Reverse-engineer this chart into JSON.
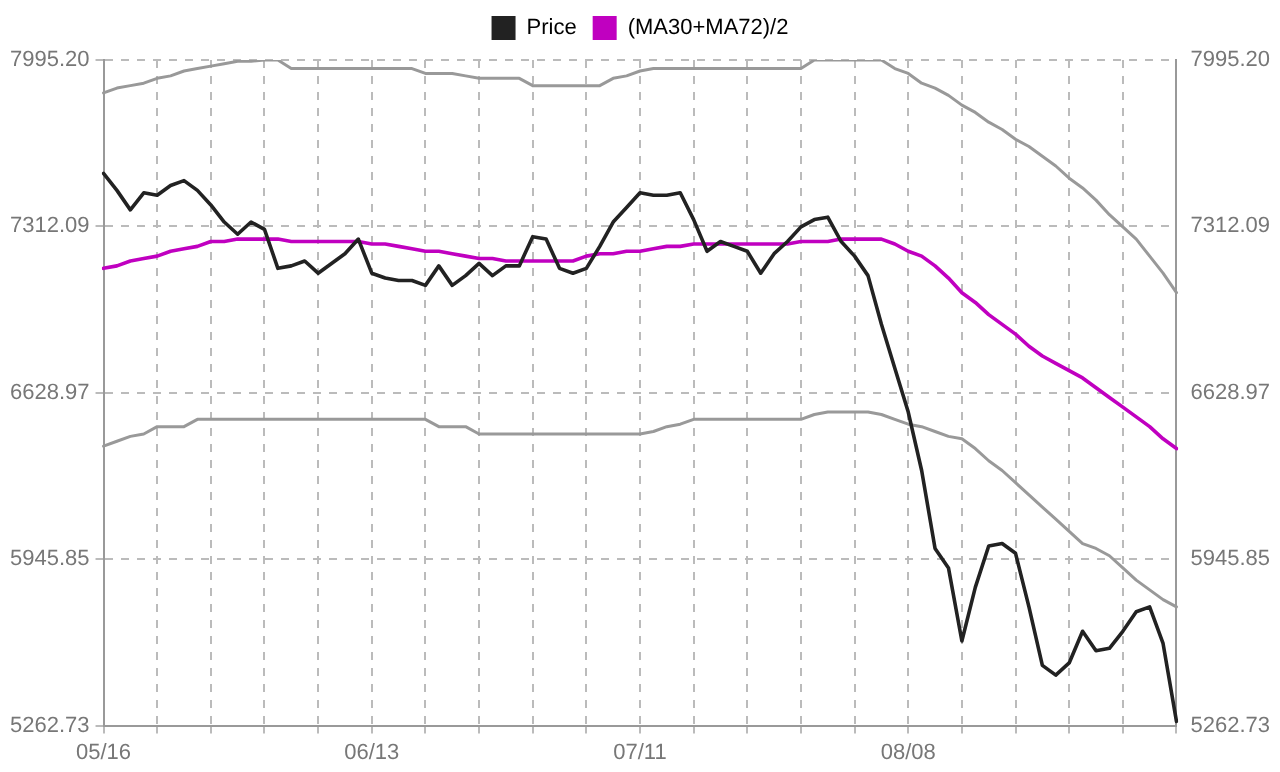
{
  "chart_data": {
    "type": "line",
    "legend": "top",
    "grid": true,
    "marker": "none",
    "line_style": "solid",
    "categories": [
      "05/16",
      null,
      null,
      null,
      null,
      null,
      null,
      null,
      null,
      null,
      null,
      null,
      null,
      null,
      null,
      null,
      null,
      null,
      null,
      null,
      "06/13",
      null,
      null,
      null,
      null,
      null,
      null,
      null,
      null,
      null,
      null,
      null,
      null,
      null,
      null,
      null,
      null,
      null,
      null,
      null,
      "07/11",
      null,
      null,
      null,
      null,
      null,
      null,
      null,
      null,
      null,
      null,
      null,
      null,
      null,
      null,
      null,
      null,
      null,
      null,
      null,
      "08/08",
      null,
      null,
      null,
      null,
      null,
      null,
      null,
      null,
      null,
      null,
      null,
      null,
      null,
      null,
      null,
      null,
      null,
      null,
      null,
      null
    ],
    "ylim": [
      5262.73,
      7995.2
    ],
    "yticks": [
      {
        "value": 5262.73,
        "label": "5262.73"
      },
      {
        "value": 5945.85,
        "label": "5945.85"
      },
      {
        "value": 6628.97,
        "label": "6628.97"
      },
      {
        "value": 7312.09,
        "label": "7312.09"
      },
      {
        "value": 7995.2,
        "label": "7995.20"
      }
    ],
    "y2lim": [
      5262.73,
      7995.2
    ],
    "y2ticks": [
      {
        "value": 5262.73,
        "label": "5262.73"
      },
      {
        "value": 5945.85,
        "label": "5945.85"
      },
      {
        "value": 6628.97,
        "label": "6628.97"
      },
      {
        "value": 7312.09,
        "label": "7312.09"
      },
      {
        "value": 7995.2,
        "label": "7995.20"
      }
    ],
    "series": [
      {
        "name": "Price",
        "color": "#222222",
        "values": [
          7530,
          7460,
          7380,
          7450,
          7440,
          7480,
          7500,
          7460,
          7400,
          7330,
          7280,
          7330,
          7300,
          7140,
          7150,
          7170,
          7120,
          7160,
          7200,
          7260,
          7120,
          7100,
          7090,
          7090,
          7070,
          7150,
          7070,
          7110,
          7160,
          7110,
          7150,
          7150,
          7270,
          7260,
          7140,
          7120,
          7140,
          7230,
          7330,
          7390,
          7450,
          7440,
          7440,
          7450,
          7340,
          7210,
          7250,
          7230,
          7210,
          7120,
          7200,
          7250,
          7310,
          7340,
          7350,
          7250,
          7190,
          7110,
          6910,
          6730,
          6550,
          6310,
          5990,
          5910,
          5610,
          5830,
          6000,
          6010,
          5970,
          5750,
          5510,
          5470,
          5520,
          5650,
          5570,
          5580,
          5650,
          5730,
          5750,
          5600,
          5280
        ]
      },
      {
        "name": "(MA30+MA72)/2",
        "color": "#c000c0",
        "values": [
          7140,
          7150,
          7170,
          7180,
          7190,
          7210,
          7220,
          7230,
          7250,
          7250,
          7260,
          7260,
          7260,
          7260,
          7250,
          7250,
          7250,
          7250,
          7250,
          7250,
          7240,
          7240,
          7230,
          7220,
          7210,
          7210,
          7200,
          7190,
          7180,
          7180,
          7170,
          7170,
          7170,
          7170,
          7170,
          7170,
          7190,
          7200,
          7200,
          7210,
          7210,
          7220,
          7230,
          7230,
          7240,
          7240,
          7240,
          7240,
          7240,
          7240,
          7240,
          7240,
          7250,
          7250,
          7250,
          7260,
          7260,
          7260,
          7260,
          7240,
          7210,
          7190,
          7150,
          7100,
          7040,
          7000,
          6950,
          6910,
          6870,
          6820,
          6780,
          6750,
          6720,
          6690,
          6650,
          6610,
          6570,
          6530,
          6490,
          6440,
          6400
        ]
      },
      {
        "color": "#999999",
        "values": [
          7860,
          7880,
          7890,
          7900,
          7920,
          7930,
          7950,
          7960,
          7970,
          7980,
          7990,
          7990,
          7995,
          7995,
          7960,
          7960,
          7960,
          7960,
          7960,
          7960,
          7960,
          7960,
          7960,
          7960,
          7940,
          7940,
          7940,
          7930,
          7920,
          7920,
          7920,
          7920,
          7890,
          7890,
          7890,
          7890,
          7890,
          7890,
          7920,
          7930,
          7950,
          7960,
          7960,
          7960,
          7960,
          7960,
          7960,
          7960,
          7960,
          7960,
          7960,
          7960,
          7960,
          7995,
          7995,
          7995,
          7995,
          7995,
          7995,
          7960,
          7940,
          7900,
          7880,
          7850,
          7810,
          7780,
          7740,
          7710,
          7670,
          7640,
          7600,
          7560,
          7510,
          7470,
          7420,
          7360,
          7310,
          7260,
          7190,
          7120,
          7040
        ]
      },
      {
        "color": "#999999",
        "values": [
          6410,
          6430,
          6450,
          6460,
          6490,
          6490,
          6490,
          6520,
          6520,
          6520,
          6520,
          6520,
          6520,
          6520,
          6520,
          6520,
          6520,
          6520,
          6520,
          6520,
          6520,
          6520,
          6520,
          6520,
          6520,
          6490,
          6490,
          6490,
          6460,
          6460,
          6460,
          6460,
          6460,
          6460,
          6460,
          6460,
          6460,
          6460,
          6460,
          6460,
          6460,
          6470,
          6490,
          6500,
          6520,
          6520,
          6520,
          6520,
          6520,
          6520,
          6520,
          6520,
          6520,
          6540,
          6550,
          6550,
          6550,
          6550,
          6540,
          6520,
          6500,
          6490,
          6470,
          6450,
          6440,
          6400,
          6350,
          6310,
          6260,
          6210,
          6160,
          6110,
          6060,
          6010,
          5990,
          5960,
          5910,
          5860,
          5820,
          5780,
          5750
        ]
      }
    ]
  }
}
